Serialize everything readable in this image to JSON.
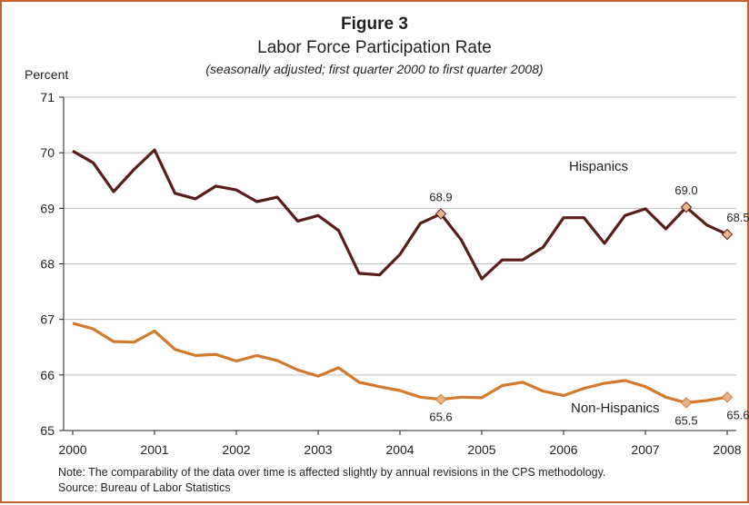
{
  "figure_label": "Figure 3",
  "note": "Note: The comparability of the data over time is affected slightly by annual revisions in the CPS methodology.",
  "source": "Source: Bureau of Labor Statistics",
  "colors": {
    "frame": "#c9622a",
    "hispanics": "#5a1e1a",
    "non_hispanics": "#d27a2e",
    "marker_fill": "#e8b48e",
    "grid": "#bdbdbd"
  },
  "chart_data": {
    "type": "line",
    "title": "Labor Force Participation Rate",
    "subtitle": "(seasonally adjusted; first quarter 2000 to first quarter 2008)",
    "ylabel": "Percent",
    "xlabel": "",
    "ylim": [
      65,
      71
    ],
    "yticks": [
      65,
      66,
      67,
      68,
      69,
      70,
      71
    ],
    "xticks": [
      "2000",
      "2001",
      "2002",
      "2003",
      "2004",
      "2005",
      "2006",
      "2007",
      "2008"
    ],
    "x": [
      "2000 Q1",
      "2000 Q2",
      "2000 Q3",
      "2000 Q4",
      "2001 Q1",
      "2001 Q2",
      "2001 Q3",
      "2001 Q4",
      "2002 Q1",
      "2002 Q2",
      "2002 Q3",
      "2002 Q4",
      "2003 Q1",
      "2003 Q2",
      "2003 Q3",
      "2003 Q4",
      "2004 Q1",
      "2004 Q2",
      "2004 Q3",
      "2004 Q4",
      "2005 Q1",
      "2005 Q2",
      "2005 Q3",
      "2005 Q4",
      "2006 Q1",
      "2006 Q2",
      "2006 Q3",
      "2006 Q4",
      "2007 Q1",
      "2007 Q2",
      "2007 Q3",
      "2007 Q4",
      "2008 Q1"
    ],
    "grid": "horizontal",
    "series": [
      {
        "name": "Hispanics",
        "values": [
          70.03,
          69.82,
          69.3,
          69.7,
          70.05,
          69.27,
          69.17,
          69.4,
          69.33,
          69.12,
          69.2,
          68.77,
          68.87,
          68.6,
          67.83,
          67.8,
          68.17,
          68.73,
          68.9,
          68.43,
          67.73,
          68.07,
          68.07,
          68.3,
          68.83,
          68.83,
          68.37,
          68.87,
          68.99,
          68.63,
          69.02,
          68.7,
          68.53
        ],
        "labels": [
          {
            "index": 18,
            "text": "68.9"
          },
          {
            "index": 30,
            "text": "69.0"
          },
          {
            "index": 32,
            "text": "68.5"
          }
        ]
      },
      {
        "name": "Non-Hispanics",
        "values": [
          66.93,
          66.83,
          66.6,
          66.59,
          66.79,
          66.46,
          66.35,
          66.37,
          66.25,
          66.35,
          66.26,
          66.09,
          65.98,
          66.13,
          65.87,
          65.79,
          65.72,
          65.6,
          65.56,
          65.6,
          65.59,
          65.81,
          65.87,
          65.71,
          65.63,
          65.76,
          65.85,
          65.9,
          65.79,
          65.6,
          65.5,
          65.54,
          65.6
        ],
        "labels": [
          {
            "index": 18,
            "text": "65.6"
          },
          {
            "index": 30,
            "text": "65.5"
          },
          {
            "index": 32,
            "text": "65.6"
          }
        ]
      }
    ]
  }
}
